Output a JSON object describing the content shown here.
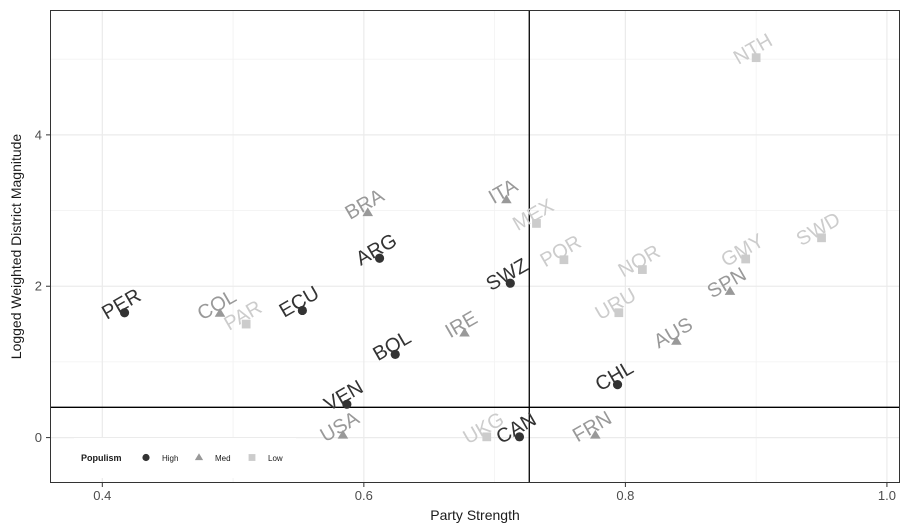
{
  "chart_data": {
    "type": "scatter",
    "xlabel": "Party Strength",
    "ylabel": "Logged Weighted District Magnitude",
    "xlim": [
      0.36,
      1.01
    ],
    "ylim": [
      -0.6,
      5.65
    ],
    "x_ticks": [
      0.4,
      0.6,
      0.8,
      1.0
    ],
    "x_tick_labels": [
      "0.4",
      "0.6",
      "0.8",
      "1.0"
    ],
    "y_ticks": [
      0,
      2,
      4
    ],
    "y_tick_labels": [
      "0",
      "2",
      "4"
    ],
    "grid": true,
    "reference_lines": {
      "vline_x": 0.7265,
      "hline_y": 0.4
    },
    "legend": {
      "title": "Populism",
      "placement": "bottom-left",
      "entries": [
        {
          "key": "High",
          "label": "High",
          "shape": "circle",
          "color": "#333333"
        },
        {
          "key": "Med",
          "label": "Med",
          "shape": "triangle",
          "color": "#999999"
        },
        {
          "key": "Low",
          "label": "Low",
          "shape": "square",
          "color": "#cccccc"
        }
      ]
    },
    "series": [
      {
        "name": "High",
        "points": [
          {
            "label": "PER",
            "x": 0.417,
            "y": 1.65
          },
          {
            "label": "ECU",
            "x": 0.553,
            "y": 1.68
          },
          {
            "label": "ARG",
            "x": 0.612,
            "y": 2.37
          },
          {
            "label": "VEN",
            "x": 0.587,
            "y": 0.44
          },
          {
            "label": "BOL",
            "x": 0.624,
            "y": 1.1
          },
          {
            "label": "SWZ",
            "x": 0.712,
            "y": 2.04
          },
          {
            "label": "CAN",
            "x": 0.719,
            "y": 0.01
          },
          {
            "label": "CHL",
            "x": 0.794,
            "y": 0.7
          }
        ]
      },
      {
        "name": "Med",
        "points": [
          {
            "label": "COL",
            "x": 0.49,
            "y": 1.64
          },
          {
            "label": "BRA",
            "x": 0.603,
            "y": 2.97
          },
          {
            "label": "ITA",
            "x": 0.709,
            "y": 3.14
          },
          {
            "label": "IRE",
            "x": 0.677,
            "y": 1.38
          },
          {
            "label": "USA",
            "x": 0.584,
            "y": 0.03
          },
          {
            "label": "FRN",
            "x": 0.777,
            "y": 0.03
          },
          {
            "label": "AUS",
            "x": 0.839,
            "y": 1.27
          },
          {
            "label": "SPN",
            "x": 0.88,
            "y": 1.93
          }
        ]
      },
      {
        "name": "Low",
        "points": [
          {
            "label": "PAR",
            "x": 0.51,
            "y": 1.5
          },
          {
            "label": "MEX",
            "x": 0.732,
            "y": 2.83
          },
          {
            "label": "POR",
            "x": 0.753,
            "y": 2.35
          },
          {
            "label": "UKG",
            "x": 0.694,
            "y": 0.01
          },
          {
            "label": "URU",
            "x": 0.795,
            "y": 1.65
          },
          {
            "label": "NOR",
            "x": 0.813,
            "y": 2.22
          },
          {
            "label": "GMY",
            "x": 0.892,
            "y": 2.36
          },
          {
            "label": "SWD",
            "x": 0.95,
            "y": 2.64
          },
          {
            "label": "NTH",
            "x": 0.9,
            "y": 5.02
          }
        ]
      }
    ]
  }
}
